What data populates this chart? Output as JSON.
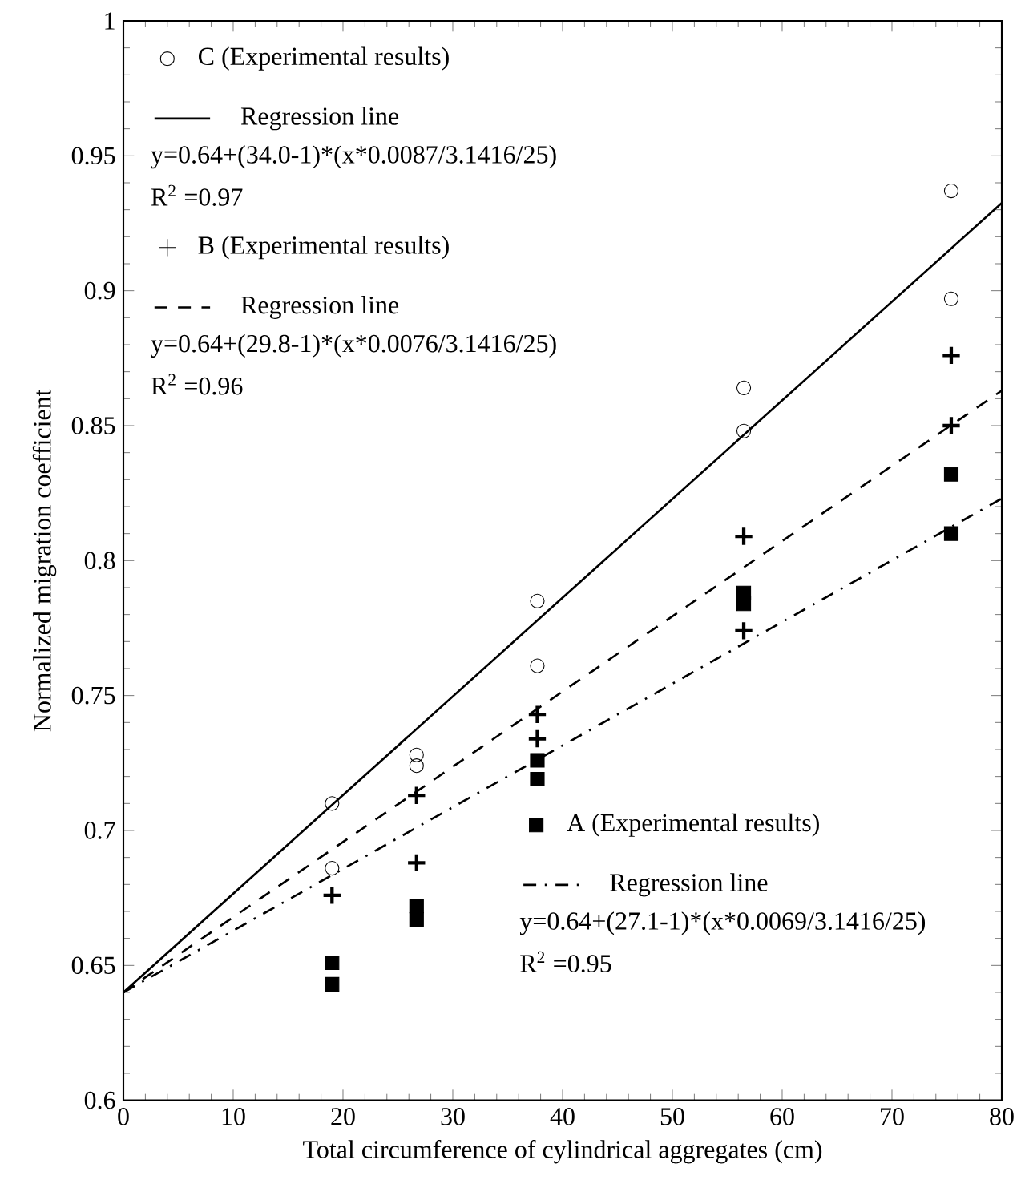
{
  "chart_data": {
    "type": "scatter",
    "xlabel": "Total circumference of cylindrical aggregates (cm)",
    "ylabel": "Normalized migration coefficient",
    "xlim": [
      0,
      80
    ],
    "ylim": [
      0.6,
      1
    ],
    "xticks": [
      0,
      10,
      20,
      30,
      40,
      50,
      60,
      70,
      80
    ],
    "yticks": [
      0.6,
      0.65,
      0.7,
      0.75,
      0.8,
      0.85,
      0.9,
      0.95,
      1
    ],
    "legend": "top left",
    "grid": false,
    "series": [
      {
        "name": "C (Experimental results)",
        "marker": "circle",
        "color": "#000000",
        "x": [
          19,
          19,
          26.7,
          26.7,
          37.7,
          37.7,
          56.5,
          56.5,
          75.4,
          75.4
        ],
        "values": [
          0.71,
          0.686,
          0.728,
          0.724,
          0.785,
          0.761,
          0.864,
          0.848,
          0.937,
          0.897
        ]
      },
      {
        "name": "Regression line",
        "type": "line",
        "line_style": "solid",
        "color": "#000000",
        "x": [
          0,
          80
        ],
        "values": [
          0.64,
          0.9325
        ]
      },
      {
        "name": "B (Experimental results)",
        "marker": "cross",
        "color": "#000000",
        "x": [
          19,
          26.7,
          26.7,
          37.7,
          37.7,
          56.5,
          56.5,
          75.4,
          75.4
        ],
        "values": [
          0.676,
          0.713,
          0.688,
          0.743,
          0.734,
          0.809,
          0.774,
          0.876,
          0.85
        ]
      },
      {
        "name": "Regression line",
        "type": "line",
        "line_style": "dashed",
        "color": "#000000",
        "x": [
          0,
          80
        ],
        "values": [
          0.64,
          0.863
        ]
      },
      {
        "name": "A (Experimental results)",
        "marker": "square",
        "color": "#000000",
        "x": [
          19,
          19,
          26.7,
          26.7,
          37.7,
          37.7,
          56.5,
          56.5,
          75.4,
          75.4
        ],
        "values": [
          0.651,
          0.643,
          0.672,
          0.667,
          0.726,
          0.719,
          0.788,
          0.784,
          0.832,
          0.81
        ]
      },
      {
        "name": "Regression line",
        "type": "line",
        "line_style": "dashdot",
        "color": "#000000",
        "x": [
          0,
          80
        ],
        "values": [
          0.64,
          0.823
        ]
      }
    ],
    "annotations": [
      "y=0.64+(34.0-1)*(x*0.0087/3.1416/25)",
      "R$^{2}$ =0.97",
      "y=0.64+(29.8-1)*(x*0.0076/3.1416/25)",
      "R$^{2}$ =0.96",
      "y=0.64+(27.1-1)*(x*0.0069/3.1416/25)",
      "R$^{2}$ =0.95"
    ]
  }
}
